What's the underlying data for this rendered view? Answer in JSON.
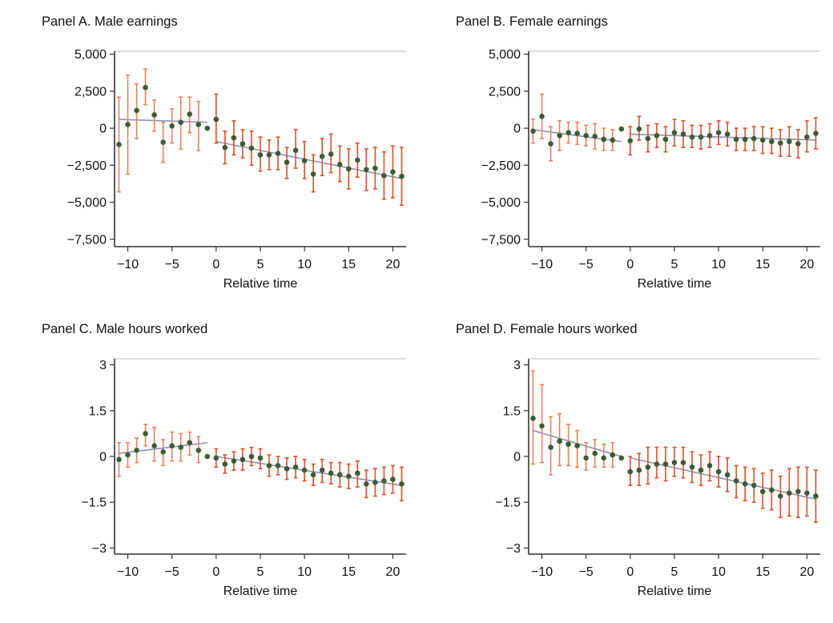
{
  "colors": {
    "point": "#3f5a36",
    "ci_pre": "#e8825b",
    "ci_post": "#d9502a",
    "trend": "#8a93b5",
    "axis": "#333333",
    "frame": "#bbbbbb"
  },
  "chart_data": [
    {
      "type": "scatter",
      "title": "Panel A. Male earnings",
      "xlabel": "Relative time",
      "ylabel": "",
      "xlim": [
        -11.5,
        21.5
      ],
      "ylim": [
        -8000,
        5200
      ],
      "xticks": [
        -10,
        -5,
        0,
        5,
        10,
        15,
        20
      ],
      "xtick_labels": [
        "−10",
        "−5",
        "0",
        "5",
        "10",
        "15",
        "20"
      ],
      "yticks": [
        5000,
        2500,
        0,
        -2500,
        -5000,
        -7500
      ],
      "ytick_labels": [
        "5,000",
        "2,500",
        "0",
        "−2,500",
        "−5,000",
        "−7,500"
      ],
      "x": [
        -11,
        -10,
        -9,
        -8,
        -7,
        -6,
        -5,
        -4,
        -3,
        -2,
        -1,
        0,
        1,
        2,
        3,
        4,
        5,
        6,
        7,
        8,
        9,
        10,
        11,
        12,
        13,
        14,
        15,
        16,
        17,
        18,
        19,
        20,
        21
      ],
      "y": [
        -1100,
        250,
        1200,
        2750,
        900,
        -950,
        150,
        400,
        950,
        250,
        0,
        600,
        -1300,
        -650,
        -1050,
        -1350,
        -1800,
        -1800,
        -1700,
        -2300,
        -1500,
        -2200,
        -3100,
        -1900,
        -1750,
        -2450,
        -2750,
        -2150,
        -2800,
        -2700,
        -3200,
        -2950,
        -3250
      ],
      "ci_low": [
        -4300,
        -3100,
        -700,
        1600,
        -200,
        -2300,
        -1000,
        -1400,
        -300,
        -1500,
        0,
        -1000,
        -2400,
        -1800,
        -2000,
        -2500,
        -2900,
        -2800,
        -2800,
        -3400,
        -2700,
        -3400,
        -4300,
        -3200,
        -3000,
        -3600,
        -4100,
        -3300,
        -4200,
        -4100,
        -4800,
        -4700,
        -5200
      ],
      "ci_high": [
        2100,
        3600,
        3000,
        4000,
        1900,
        400,
        1300,
        2100,
        2100,
        1800,
        0,
        2300,
        -200,
        500,
        -100,
        -200,
        -600,
        -800,
        -600,
        -1300,
        -100,
        -900,
        -1800,
        -700,
        -400,
        -1200,
        -1400,
        -1000,
        -1400,
        -1300,
        -1600,
        -1200,
        -1300
      ],
      "trends": [
        {
          "x0": -11,
          "y0": 600,
          "x1": -1,
          "y1": 400
        },
        {
          "x0": 0,
          "y0": -900,
          "x1": 21,
          "y1": -3400
        }
      ]
    },
    {
      "type": "scatter",
      "title": "Panel B. Female earnings",
      "xlabel": "Relative time",
      "ylabel": "",
      "xlim": [
        -11.5,
        21.5
      ],
      "ylim": [
        -8000,
        5200
      ],
      "xticks": [
        -10,
        -5,
        0,
        5,
        10,
        15,
        20
      ],
      "xtick_labels": [
        "−10",
        "−5",
        "0",
        "5",
        "10",
        "15",
        "20"
      ],
      "yticks": [
        5000,
        2500,
        0,
        -2500,
        -5000,
        -7500
      ],
      "ytick_labels": [
        "5,000",
        "2,500",
        "0",
        "−2,500",
        "−5,000",
        "−7,500"
      ],
      "x": [
        -11,
        -10,
        -9,
        -8,
        -7,
        -6,
        -5,
        -4,
        -3,
        -2,
        -1,
        0,
        1,
        2,
        3,
        4,
        5,
        6,
        7,
        8,
        9,
        10,
        11,
        12,
        13,
        14,
        15,
        16,
        17,
        18,
        19,
        20,
        21
      ],
      "y": [
        -200,
        800,
        -1050,
        -500,
        -300,
        -350,
        -500,
        -550,
        -750,
        -800,
        -50,
        -850,
        -50,
        -700,
        -500,
        -750,
        -300,
        -400,
        -600,
        -600,
        -500,
        -300,
        -400,
        -750,
        -750,
        -700,
        -800,
        -900,
        -1000,
        -900,
        -1050,
        -600,
        -350
      ],
      "ci_low": [
        -1000,
        -700,
        -2200,
        -1500,
        -1000,
        -1100,
        -1200,
        -1400,
        -1500,
        -1500,
        -50,
        -1800,
        -800,
        -1600,
        -1300,
        -1600,
        -1200,
        -1300,
        -1300,
        -1400,
        -1300,
        -1100,
        -1200,
        -1500,
        -1500,
        -1500,
        -1700,
        -1700,
        -1900,
        -1900,
        -2000,
        -1600,
        -1400
      ],
      "ci_high": [
        600,
        2300,
        100,
        500,
        400,
        400,
        200,
        300,
        0,
        -100,
        -50,
        100,
        800,
        200,
        300,
        100,
        600,
        500,
        200,
        200,
        300,
        500,
        400,
        0,
        0,
        100,
        100,
        0,
        -100,
        100,
        -100,
        500,
        700
      ],
      "trends": [
        {
          "x0": -11,
          "y0": -100,
          "x1": -1,
          "y1": -900
        },
        {
          "x0": 0,
          "y0": -400,
          "x1": 21,
          "y1": -800
        }
      ]
    },
    {
      "type": "scatter",
      "title": "Panel C. Male hours worked",
      "xlabel": "Relative time",
      "ylabel": "",
      "xlim": [
        -11.5,
        21.5
      ],
      "ylim": [
        -3.2,
        3.2
      ],
      "xticks": [
        -10,
        -5,
        0,
        5,
        10,
        15,
        20
      ],
      "xtick_labels": [
        "−10",
        "−5",
        "0",
        "5",
        "10",
        "15",
        "20"
      ],
      "yticks": [
        3,
        1.5,
        0,
        -1.5,
        -3
      ],
      "ytick_labels": [
        "3",
        "1.5",
        "0",
        "−1.5",
        "−3"
      ],
      "x": [
        -11,
        -10,
        -9,
        -8,
        -7,
        -6,
        -5,
        -4,
        -3,
        -2,
        -1,
        0,
        1,
        2,
        3,
        4,
        5,
        6,
        7,
        8,
        9,
        10,
        11,
        12,
        13,
        14,
        15,
        16,
        17,
        18,
        19,
        20,
        21
      ],
      "y": [
        -0.1,
        0.05,
        0.2,
        0.75,
        0.35,
        0.15,
        0.35,
        0.3,
        0.45,
        0.2,
        0,
        -0.05,
        -0.25,
        -0.15,
        -0.1,
        0,
        -0.05,
        -0.3,
        -0.3,
        -0.4,
        -0.35,
        -0.45,
        -0.6,
        -0.45,
        -0.55,
        -0.6,
        -0.65,
        -0.55,
        -0.9,
        -0.85,
        -0.8,
        -0.75,
        -0.9
      ],
      "ci_low": [
        -0.65,
        -0.35,
        -0.2,
        0.35,
        -0.15,
        -0.3,
        -0.15,
        -0.15,
        0.05,
        -0.2,
        0,
        -0.35,
        -0.55,
        -0.45,
        -0.45,
        -0.3,
        -0.4,
        -0.65,
        -0.6,
        -0.75,
        -0.7,
        -0.8,
        -0.95,
        -0.85,
        -0.9,
        -1,
        -1.05,
        -1,
        -1.35,
        -1.3,
        -1.25,
        -1.2,
        -1.45
      ],
      "ci_high": [
        0.45,
        0.45,
        0.6,
        1.05,
        0.95,
        0.55,
        0.8,
        0.75,
        0.8,
        0.65,
        0,
        0.25,
        0.05,
        0.15,
        0.25,
        0.3,
        0.25,
        0.05,
        0,
        -0.05,
        0,
        -0.1,
        -0.25,
        -0.1,
        -0.2,
        -0.2,
        -0.25,
        -0.15,
        -0.45,
        -0.4,
        -0.35,
        -0.3,
        -0.35
      ],
      "trends": [
        {
          "x0": -11,
          "y0": 0.1,
          "x1": -1,
          "y1": 0.45
        },
        {
          "x0": 0,
          "y0": 0,
          "x1": 21,
          "y1": -0.95
        }
      ]
    },
    {
      "type": "scatter",
      "title": "Panel D. Female hours worked",
      "xlabel": "Relative time",
      "ylabel": "",
      "xlim": [
        -11.5,
        21.5
      ],
      "ylim": [
        -3.2,
        3.2
      ],
      "xticks": [
        -10,
        -5,
        0,
        5,
        10,
        15,
        20
      ],
      "xtick_labels": [
        "−10",
        "−5",
        "0",
        "5",
        "10",
        "15",
        "20"
      ],
      "yticks": [
        3,
        1.5,
        0,
        -1.5,
        -3
      ],
      "ytick_labels": [
        "3",
        "1.5",
        "0",
        "−1.5",
        "−3"
      ],
      "x": [
        -11,
        -10,
        -9,
        -8,
        -7,
        -6,
        -5,
        -4,
        -3,
        -2,
        -1,
        0,
        1,
        2,
        3,
        4,
        5,
        6,
        7,
        8,
        9,
        10,
        11,
        12,
        13,
        14,
        15,
        16,
        17,
        18,
        19,
        20,
        21
      ],
      "y": [
        1.25,
        1,
        0.3,
        0.5,
        0.4,
        0.35,
        -0.05,
        0.1,
        -0.05,
        0.05,
        -0.05,
        -0.5,
        -0.45,
        -0.35,
        -0.25,
        -0.25,
        -0.2,
        -0.2,
        -0.35,
        -0.45,
        -0.3,
        -0.5,
        -0.6,
        -0.8,
        -0.9,
        -0.95,
        -1.15,
        -1.1,
        -1.3,
        -1.2,
        -1.15,
        -1.2,
        -1.3
      ],
      "ci_low": [
        -0.25,
        -0.2,
        -0.6,
        -0.3,
        -0.3,
        -0.35,
        -0.45,
        -0.35,
        -0.35,
        -0.35,
        -0.05,
        -0.95,
        -0.95,
        -0.9,
        -0.7,
        -0.8,
        -0.65,
        -0.7,
        -0.85,
        -0.95,
        -0.8,
        -1,
        -1.15,
        -1.35,
        -1.45,
        -1.5,
        -1.7,
        -1.75,
        -2,
        -1.95,
        -2,
        -1.95,
        -2.15
      ],
      "ci_high": [
        2.8,
        2.35,
        1.3,
        1.4,
        1.05,
        0.85,
        0.45,
        0.55,
        0.4,
        0.45,
        -0.05,
        0,
        0.1,
        0.3,
        0.3,
        0.3,
        0.3,
        0.3,
        0.15,
        0.05,
        0.15,
        0,
        -0.05,
        -0.3,
        -0.35,
        -0.4,
        -0.55,
        -0.45,
        -0.65,
        -0.4,
        -0.35,
        -0.35,
        -0.45
      ],
      "trends": [
        {
          "x0": -11,
          "y0": 0.85,
          "x1": -1,
          "y1": 0
        },
        {
          "x0": 0,
          "y0": -0.05,
          "x1": 21,
          "y1": -1.4
        }
      ]
    }
  ]
}
